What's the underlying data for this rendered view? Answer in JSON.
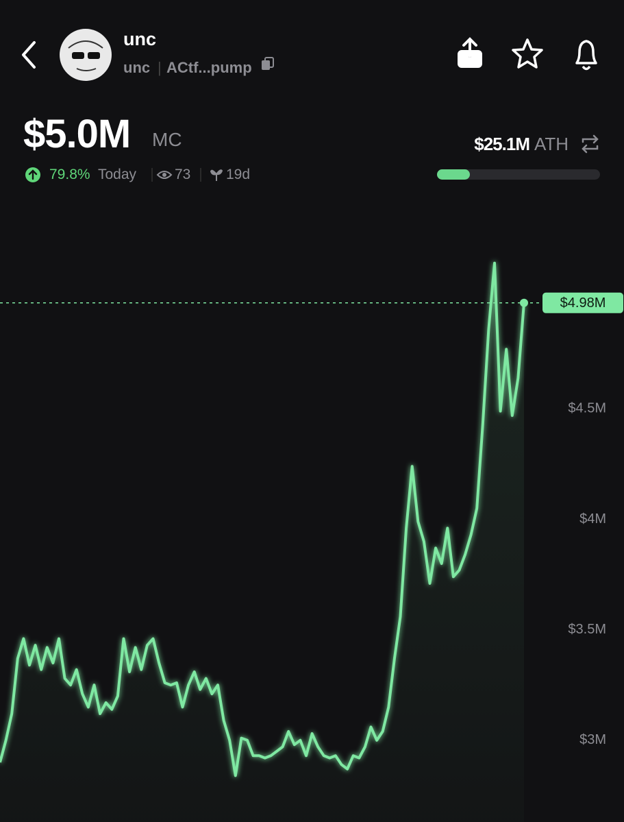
{
  "header": {
    "name": "unc",
    "ticker": "unc",
    "address": "ACtf...pump"
  },
  "stats": {
    "market_cap": "$5.0M",
    "mc_label": "MC",
    "change": "79.8%",
    "change_period": "Today",
    "views": "73",
    "age": "19d",
    "ath": "$25.1M",
    "ath_label": "ATH"
  },
  "chart_data": {
    "type": "line",
    "color": "#7fe8a2",
    "values": [
      2.9,
      3.0,
      3.12,
      3.37,
      3.46,
      3.34,
      3.43,
      3.32,
      3.42,
      3.35,
      3.46,
      3.28,
      3.25,
      3.32,
      3.21,
      3.15,
      3.25,
      3.12,
      3.17,
      3.14,
      3.2,
      3.46,
      3.31,
      3.42,
      3.32,
      3.43,
      3.46,
      3.35,
      3.26,
      3.25,
      3.26,
      3.15,
      3.25,
      3.31,
      3.23,
      3.28,
      3.21,
      3.25,
      3.09,
      3.0,
      2.84,
      3.01,
      3.0,
      2.93,
      2.93,
      2.92,
      2.93,
      2.95,
      2.97,
      3.04,
      2.98,
      3.0,
      2.93,
      3.03,
      2.97,
      2.93,
      2.92,
      2.93,
      2.89,
      2.87,
      2.93,
      2.92,
      2.97,
      3.06,
      3.0,
      3.04,
      3.15,
      3.37,
      3.56,
      3.96,
      4.24,
      3.99,
      3.9,
      3.71,
      3.87,
      3.8,
      3.96,
      3.74,
      3.77,
      3.84,
      3.93,
      4.05,
      4.43,
      4.86,
      5.16,
      4.49,
      4.77,
      4.47,
      4.64,
      4.98
    ],
    "ylim": [
      2.63,
      5.42
    ],
    "yticks": [
      {
        "value": 3,
        "label": "$3M"
      },
      {
        "value": 3.5,
        "label": "$3.5M"
      },
      {
        "value": 4,
        "label": "$4M"
      },
      {
        "value": 4.5,
        "label": "$4.5M"
      }
    ],
    "current": {
      "value": 4.98,
      "label": "$4.98M"
    }
  }
}
